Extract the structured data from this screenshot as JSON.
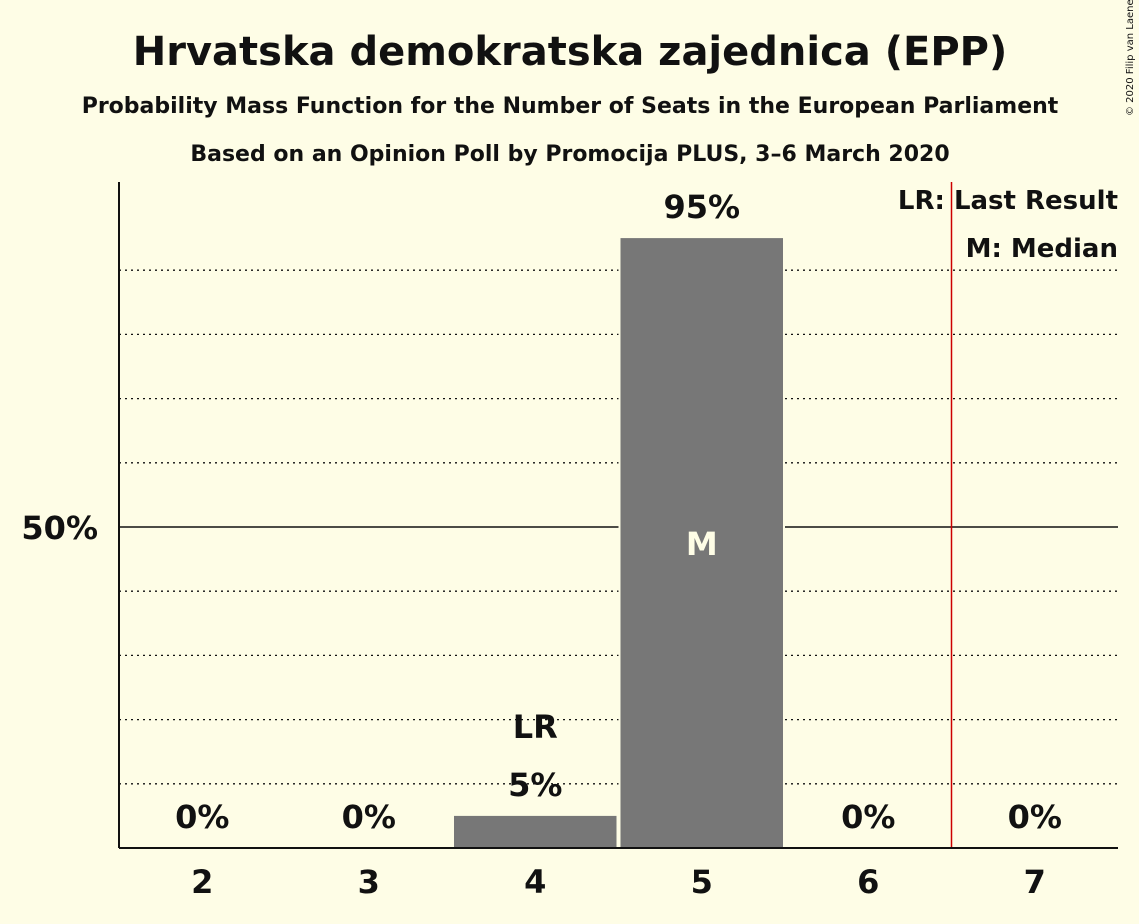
{
  "title": "Hrvatska demokratska zajednica (EPP)",
  "subtitle1": "Probability Mass Function for the Number of Seats in the European Parliament",
  "subtitle2": "Based on an Opinion Poll by Promocija PLUS, 3–6 March 2020",
  "copyright": "© 2020 Filip van Laenen",
  "legend": {
    "last_result": "LR: Last Result",
    "median": "M: Median"
  },
  "chart_data": {
    "type": "bar",
    "categories": [
      "2",
      "3",
      "4",
      "5",
      "6",
      "7"
    ],
    "values": [
      0,
      0,
      5,
      95,
      0,
      0
    ],
    "value_labels": [
      "0%",
      "0%",
      "5%",
      "95%",
      "0%",
      "0%"
    ],
    "ytick_label": "50%",
    "ylim": [
      0,
      100
    ],
    "minor_gridlines_every": 10,
    "major_gridline_at": 50,
    "last_result_category": "4",
    "last_result_label": "LR",
    "median_category": "5",
    "median_label": "M",
    "last_result_line_between": [
      "6",
      "7"
    ],
    "grid": true,
    "legend_position": "top-right",
    "bar_color": "#777777",
    "last_result_line_color": "#cc0000",
    "background_color": "#fefde6"
  }
}
